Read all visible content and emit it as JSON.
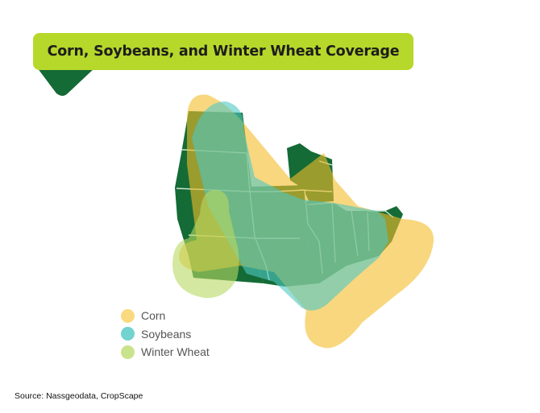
{
  "title": "Corn, Soybeans, and Winter Wheat Coverage",
  "legend": [
    {
      "label": "Corn",
      "color": "#fbd97f"
    },
    {
      "label": "Soybeans",
      "color": "#72d3cf"
    },
    {
      "label": "Winter Wheat",
      "color": "#c9e38c"
    }
  ],
  "source": "Source: Nassgeodata, CropScape",
  "colors": {
    "banner": "#b6d82a",
    "banner_tab": "#146b35",
    "states": "#146b35",
    "state_borders": "#cfe8d6"
  }
}
